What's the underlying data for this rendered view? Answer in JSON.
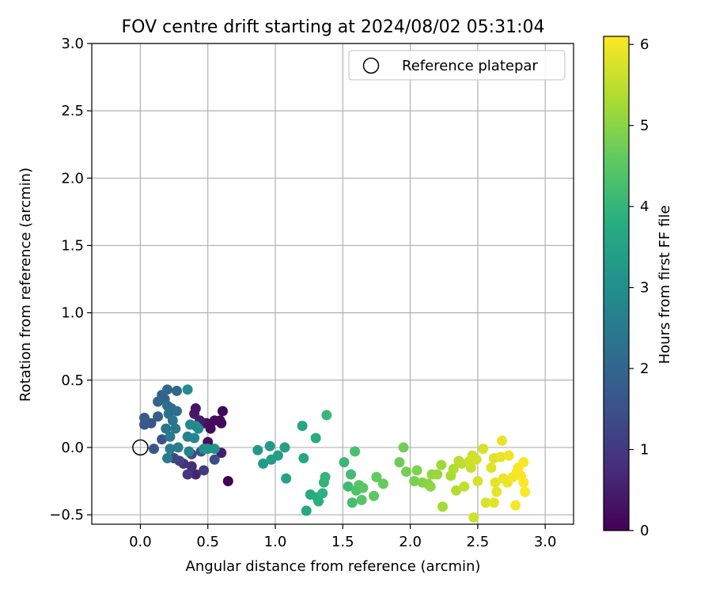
{
  "chart_data": {
    "type": "scatter",
    "title": "FOV centre drift starting at 2024/08/02 05:31:04",
    "xlabel": "Angular distance from reference (arcmin)",
    "ylabel": "Rotation from reference (arcmin)",
    "xlim": [
      -0.36,
      3.21
    ],
    "ylim": [
      -0.57,
      3.0
    ],
    "xticks": [
      "0.0",
      "0.5",
      "1.0",
      "1.5",
      "2.0",
      "2.5",
      "3.0"
    ],
    "yticks": [
      "−0.5",
      "0.0",
      "0.5",
      "1.0",
      "1.5",
      "2.0",
      "2.5",
      "3.0"
    ],
    "grid": true,
    "legend": {
      "placement": "top-right",
      "label": "Reference platepar"
    },
    "reference_point": {
      "x": 0.0,
      "y": 0.0
    },
    "colorbar": {
      "label": "Hours from first FF file",
      "min": 0,
      "max": 6.1,
      "ticks": [
        "0",
        "1",
        "2",
        "3",
        "4",
        "5",
        "6"
      ],
      "colormap": "viridis"
    },
    "series": [
      {
        "points": [
          {
            "x": 0.65,
            "y": -0.25,
            "h": 0.02
          },
          {
            "x": 0.61,
            "y": 0.27,
            "h": 0.05
          },
          {
            "x": 0.59,
            "y": 0.2,
            "h": 0.08
          },
          {
            "x": 0.6,
            "y": 0.18,
            "h": 0.12
          },
          {
            "x": 0.55,
            "y": 0.2,
            "h": 0.15
          },
          {
            "x": 0.52,
            "y": 0.14,
            "h": 0.18
          },
          {
            "x": 0.49,
            "y": 0.18,
            "h": 0.22
          },
          {
            "x": 0.5,
            "y": 0.04,
            "h": 0.25
          },
          {
            "x": 0.47,
            "y": 0.18,
            "h": 0.3
          },
          {
            "x": 0.41,
            "y": 0.29,
            "h": 0.35
          },
          {
            "x": 0.4,
            "y": 0.25,
            "h": 0.4
          },
          {
            "x": 0.44,
            "y": 0.2,
            "h": 0.45
          },
          {
            "x": 0.6,
            "y": -0.04,
            "h": 0.5
          },
          {
            "x": 0.41,
            "y": -0.2,
            "h": 0.6
          },
          {
            "x": 0.38,
            "y": -0.14,
            "h": 0.75
          },
          {
            "x": 0.32,
            "y": -0.12,
            "h": 0.85
          },
          {
            "x": 0.35,
            "y": -0.2,
            "h": 0.95
          },
          {
            "x": 0.47,
            "y": -0.17,
            "h": 1.05
          },
          {
            "x": 0.29,
            "y": -0.1,
            "h": 1.15
          },
          {
            "x": 0.25,
            "y": -0.08,
            "h": 1.25
          },
          {
            "x": 0.38,
            "y": -0.05,
            "h": 1.35
          },
          {
            "x": 0.55,
            "y": -0.09,
            "h": 1.45
          },
          {
            "x": 0.45,
            "y": -0.03,
            "h": 1.5
          },
          {
            "x": 0.16,
            "y": 0.06,
            "h": 1.55
          },
          {
            "x": 0.08,
            "y": 0.18,
            "h": 1.6
          },
          {
            "x": 0.1,
            "y": -0.01,
            "h": 1.65
          },
          {
            "x": 0.03,
            "y": 0.17,
            "h": 1.7
          },
          {
            "x": 0.03,
            "y": 0.22,
            "h": 1.75
          },
          {
            "x": 0.13,
            "y": 0.23,
            "h": 1.8
          },
          {
            "x": 0.16,
            "y": 0.39,
            "h": 1.85
          },
          {
            "x": 0.18,
            "y": 0.36,
            "h": 1.9
          },
          {
            "x": 0.13,
            "y": 0.34,
            "h": 1.95
          },
          {
            "x": 0.2,
            "y": 0.43,
            "h": 2.0
          },
          {
            "x": 0.27,
            "y": 0.42,
            "h": 2.05
          },
          {
            "x": 0.2,
            "y": 0.31,
            "h": 2.1
          },
          {
            "x": 0.23,
            "y": 0.29,
            "h": 2.15
          },
          {
            "x": 0.27,
            "y": 0.27,
            "h": 2.2
          },
          {
            "x": 0.21,
            "y": 0.25,
            "h": 2.25
          },
          {
            "x": 0.19,
            "y": 0.14,
            "h": 2.3
          },
          {
            "x": 0.24,
            "y": 0.2,
            "h": 2.35
          },
          {
            "x": 0.26,
            "y": 0.14,
            "h": 2.4
          },
          {
            "x": 0.22,
            "y": 0.08,
            "h": 2.45
          },
          {
            "x": 0.22,
            "y": -0.01,
            "h": 2.5
          },
          {
            "x": 0.2,
            "y": -0.08,
            "h": 2.55
          },
          {
            "x": 0.28,
            "y": 0.0,
            "h": 2.6
          },
          {
            "x": 0.35,
            "y": 0.08,
            "h": 2.65
          },
          {
            "x": 0.36,
            "y": -0.03,
            "h": 2.7
          },
          {
            "x": 0.4,
            "y": 0.07,
            "h": 2.75
          },
          {
            "x": 0.37,
            "y": 0.17,
            "h": 2.8
          },
          {
            "x": 0.43,
            "y": 0.14,
            "h": 2.85
          },
          {
            "x": 0.41,
            "y": 0.16,
            "h": 2.9
          },
          {
            "x": 0.35,
            "y": 0.43,
            "h": 2.95
          },
          {
            "x": 0.47,
            "y": -0.01,
            "h": 3.0
          },
          {
            "x": 0.5,
            "y": -0.01,
            "h": 3.05
          },
          {
            "x": 0.55,
            "y": -0.01,
            "h": 3.1
          },
          {
            "x": 0.87,
            "y": -0.02,
            "h": 3.2
          },
          {
            "x": 0.91,
            "y": -0.12,
            "h": 3.25
          },
          {
            "x": 0.96,
            "y": 0.01,
            "h": 3.3
          },
          {
            "x": 0.97,
            "y": -0.09,
            "h": 3.35
          },
          {
            "x": 1.02,
            "y": -0.06,
            "h": 3.4
          },
          {
            "x": 1.07,
            "y": 0.0,
            "h": 3.45
          },
          {
            "x": 1.08,
            "y": -0.23,
            "h": 3.5
          },
          {
            "x": 1.2,
            "y": 0.16,
            "h": 3.55
          },
          {
            "x": 1.21,
            "y": -0.08,
            "h": 3.6
          },
          {
            "x": 1.23,
            "y": -0.47,
            "h": 3.65
          },
          {
            "x": 1.26,
            "y": -0.35,
            "h": 3.7
          },
          {
            "x": 1.3,
            "y": 0.07,
            "h": 3.75
          },
          {
            "x": 1.31,
            "y": -0.37,
            "h": 3.8
          },
          {
            "x": 1.32,
            "y": -0.4,
            "h": 3.85
          },
          {
            "x": 1.35,
            "y": -0.34,
            "h": 3.9
          },
          {
            "x": 1.36,
            "y": -0.26,
            "h": 3.95
          },
          {
            "x": 1.37,
            "y": -0.22,
            "h": 4.0
          },
          {
            "x": 1.38,
            "y": 0.24,
            "h": 4.05
          },
          {
            "x": 1.51,
            "y": -0.11,
            "h": 4.1
          },
          {
            "x": 1.54,
            "y": -0.29,
            "h": 4.15
          },
          {
            "x": 1.56,
            "y": -0.2,
            "h": 4.2
          },
          {
            "x": 1.57,
            "y": -0.41,
            "h": 4.25
          },
          {
            "x": 1.59,
            "y": -0.03,
            "h": 4.3
          },
          {
            "x": 1.6,
            "y": -0.32,
            "h": 4.35
          },
          {
            "x": 1.62,
            "y": -0.28,
            "h": 4.4
          },
          {
            "x": 1.64,
            "y": -0.39,
            "h": 4.45
          },
          {
            "x": 1.65,
            "y": -0.3,
            "h": 4.5
          },
          {
            "x": 1.73,
            "y": -0.36,
            "h": 4.55
          },
          {
            "x": 1.75,
            "y": -0.22,
            "h": 4.6
          },
          {
            "x": 1.8,
            "y": -0.27,
            "h": 4.65
          },
          {
            "x": 1.92,
            "y": -0.11,
            "h": 4.7
          },
          {
            "x": 1.95,
            "y": 0.0,
            "h": 4.75
          },
          {
            "x": 1.97,
            "y": -0.18,
            "h": 4.8
          },
          {
            "x": 2.03,
            "y": -0.25,
            "h": 4.85
          },
          {
            "x": 2.05,
            "y": -0.17,
            "h": 4.9
          },
          {
            "x": 2.09,
            "y": -0.26,
            "h": 4.95
          },
          {
            "x": 2.13,
            "y": -0.27,
            "h": 5.0
          },
          {
            "x": 2.15,
            "y": -0.29,
            "h": 5.05
          },
          {
            "x": 2.16,
            "y": -0.2,
            "h": 5.1
          },
          {
            "x": 2.2,
            "y": -0.2,
            "h": 5.15
          },
          {
            "x": 2.23,
            "y": -0.13,
            "h": 5.2
          },
          {
            "x": 2.24,
            "y": -0.44,
            "h": 5.25
          },
          {
            "x": 2.3,
            "y": -0.21,
            "h": 5.3
          },
          {
            "x": 2.32,
            "y": -0.16,
            "h": 5.35
          },
          {
            "x": 2.34,
            "y": -0.32,
            "h": 5.4
          },
          {
            "x": 2.36,
            "y": -0.1,
            "h": 5.45
          },
          {
            "x": 2.38,
            "y": -0.12,
            "h": 5.5
          },
          {
            "x": 2.4,
            "y": -0.29,
            "h": 5.55
          },
          {
            "x": 2.44,
            "y": -0.1,
            "h": 5.6
          },
          {
            "x": 2.45,
            "y": -0.15,
            "h": 5.62
          },
          {
            "x": 2.46,
            "y": -0.06,
            "h": 5.65
          },
          {
            "x": 2.47,
            "y": -0.52,
            "h": 5.68
          },
          {
            "x": 2.49,
            "y": -0.09,
            "h": 5.7
          },
          {
            "x": 2.5,
            "y": -0.25,
            "h": 5.72
          },
          {
            "x": 2.54,
            "y": -0.01,
            "h": 5.75
          },
          {
            "x": 2.56,
            "y": -0.41,
            "h": 5.78
          },
          {
            "x": 2.6,
            "y": -0.15,
            "h": 5.8
          },
          {
            "x": 2.62,
            "y": -0.08,
            "h": 5.82
          },
          {
            "x": 2.62,
            "y": -0.41,
            "h": 5.84
          },
          {
            "x": 2.63,
            "y": -0.26,
            "h": 5.86
          },
          {
            "x": 2.64,
            "y": -0.33,
            "h": 5.88
          },
          {
            "x": 2.67,
            "y": -0.07,
            "h": 5.9
          },
          {
            "x": 2.68,
            "y": 0.05,
            "h": 5.92
          },
          {
            "x": 2.69,
            "y": -0.23,
            "h": 5.94
          },
          {
            "x": 2.72,
            "y": -0.26,
            "h": 5.96
          },
          {
            "x": 2.73,
            "y": -0.06,
            "h": 5.98
          },
          {
            "x": 2.76,
            "y": -0.22,
            "h": 6.0
          },
          {
            "x": 2.78,
            "y": -0.43,
            "h": 6.02
          },
          {
            "x": 2.79,
            "y": -0.18,
            "h": 6.03
          },
          {
            "x": 2.8,
            "y": -0.15,
            "h": 6.04
          },
          {
            "x": 2.82,
            "y": -0.21,
            "h": 6.05
          },
          {
            "x": 2.84,
            "y": -0.11,
            "h": 6.06
          },
          {
            "x": 2.84,
            "y": -0.26,
            "h": 6.07
          },
          {
            "x": 2.85,
            "y": -0.33,
            "h": 6.08
          }
        ]
      }
    ]
  }
}
